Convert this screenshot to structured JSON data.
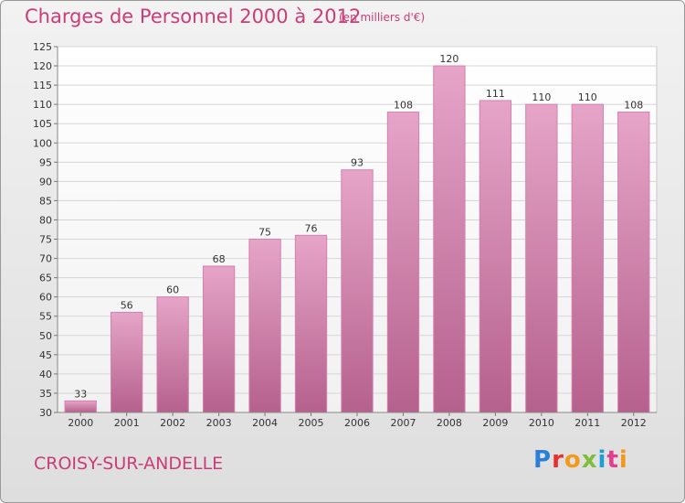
{
  "header": {
    "title": "Charges de Personnel 2000 à 2012",
    "subtitle": "(en milliers d'€)"
  },
  "footer": {
    "commune": "CROISY-SUR-ANDELLE",
    "logo_text": "Proxiti",
    "logo_colors": [
      "#2c7fd6",
      "#e8302e",
      "#f29a1c",
      "#7fbe3a",
      "#1a9fd8",
      "#e23e8c",
      "#f29a1c"
    ]
  },
  "colors": {
    "bar": "#d67fae",
    "bar_light": "#e6a5c8",
    "bar_dark": "#b5618d",
    "text_accent": "#cc3c78"
  },
  "chart_data": {
    "type": "bar",
    "title": "Charges de Personnel 2000 à 2012",
    "subtitle": "(en milliers d'€)",
    "categories": [
      "2000",
      "2001",
      "2002",
      "2003",
      "2004",
      "2005",
      "2006",
      "2007",
      "2008",
      "2009",
      "2010",
      "2011",
      "2012"
    ],
    "values": [
      33,
      56,
      60,
      68,
      75,
      76,
      93,
      108,
      120,
      111,
      110,
      110,
      108
    ],
    "ylim": [
      30,
      125
    ],
    "yticks": [
      30,
      35,
      40,
      45,
      50,
      55,
      60,
      65,
      70,
      75,
      80,
      85,
      90,
      95,
      100,
      105,
      110,
      115,
      120,
      125
    ],
    "grid": true,
    "data_labels": true
  }
}
